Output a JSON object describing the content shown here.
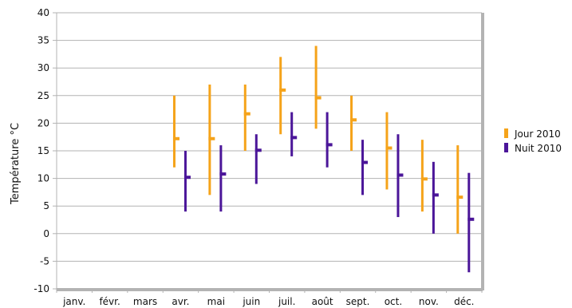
{
  "chart_data": {
    "type": "range-bar",
    "ylabel": "Température °C",
    "ylim": [
      -10,
      40
    ],
    "ytick_step": 5,
    "grid": true,
    "legend_position": "right",
    "categories": [
      "janv.",
      "févr.",
      "mars",
      "avr.",
      "mai",
      "juin",
      "juil.",
      "août",
      "sept.",
      "oct.",
      "nov.",
      "déc."
    ],
    "series": [
      {
        "name": "Jour 2010",
        "color": "#f5a31a",
        "data": [
          null,
          null,
          null,
          {
            "min": 12,
            "max": 25,
            "mean": 17.2
          },
          {
            "min": 7,
            "max": 27,
            "mean": 17.2
          },
          {
            "min": 15,
            "max": 27,
            "mean": 21.7
          },
          {
            "min": 18,
            "max": 32,
            "mean": 26
          },
          {
            "min": 19,
            "max": 34,
            "mean": 24.6
          },
          {
            "min": 15,
            "max": 25,
            "mean": 20.6
          },
          {
            "min": 8,
            "max": 22,
            "mean": 15.5
          },
          {
            "min": 4,
            "max": 17,
            "mean": 9.9
          },
          {
            "min": 0,
            "max": 16,
            "mean": 6.6
          }
        ]
      },
      {
        "name": "Nuit 2010",
        "color": "#4b1699",
        "data": [
          null,
          null,
          null,
          {
            "min": 4,
            "max": 15,
            "mean": 10.2
          },
          {
            "min": 4,
            "max": 16,
            "mean": 10.8
          },
          {
            "min": 9,
            "max": 18,
            "mean": 15.1
          },
          {
            "min": 14,
            "max": 22,
            "mean": 17.4
          },
          {
            "min": 12,
            "max": 22,
            "mean": 16.1
          },
          {
            "min": 7,
            "max": 17,
            "mean": 12.9
          },
          {
            "min": 3,
            "max": 18,
            "mean": 10.6
          },
          {
            "min": 0,
            "max": 13,
            "mean": 7
          },
          {
            "min": -7,
            "max": 11,
            "mean": 2.6
          }
        ]
      }
    ]
  }
}
